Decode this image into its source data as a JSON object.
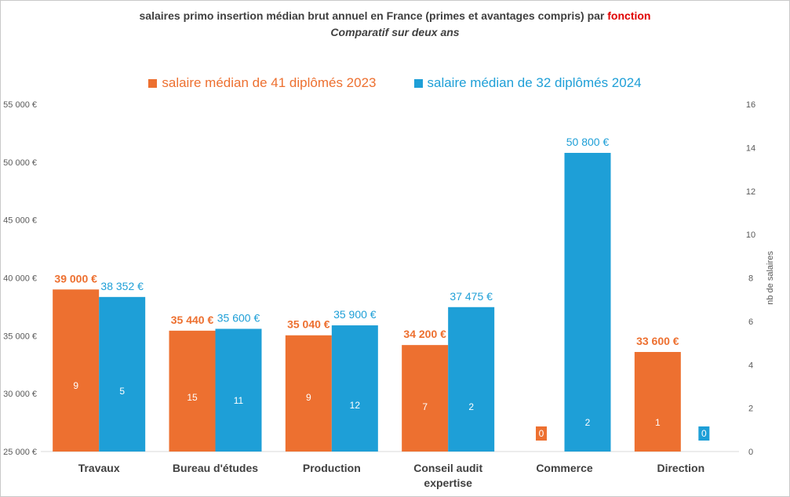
{
  "title": {
    "main": "salaires primo insertion médian brut annuel en France (primes et avantages compris) par ",
    "accent": "fonction",
    "subtitle": "Comparatif sur deux ans"
  },
  "colors": {
    "series_2023": "#ed7030",
    "series_2024": "#1e9fd7",
    "accent_title": "#e00000"
  },
  "chart_data": {
    "type": "bar",
    "title": "salaires primo insertion médian brut annuel en France (primes et avantages compris) par fonction",
    "subtitle": "Comparatif sur deux ans",
    "categories": [
      "Travaux",
      "Bureau d'études",
      "Production",
      "Conseil audit expertise",
      "Commerce",
      "Direction"
    ],
    "category_lines": [
      [
        "Travaux"
      ],
      [
        "Bureau d'études"
      ],
      [
        "Production"
      ],
      [
        "Conseil audit",
        "expertise"
      ],
      [
        "Commerce"
      ],
      [
        "Direction"
      ]
    ],
    "series": [
      {
        "name": "salaire médian de 41 diplômés 2023",
        "values": [
          39000,
          35440,
          35040,
          34200,
          null,
          33600
        ],
        "value_labels": [
          "39 000 €",
          "35 440 €",
          "35 040 €",
          "34 200 €",
          "",
          "33 600 €"
        ],
        "counts": [
          9,
          15,
          9,
          7,
          0,
          1
        ]
      },
      {
        "name": "salaire médian de 32 diplômés 2024",
        "values": [
          38352,
          35600,
          35900,
          37475,
          50800,
          null
        ],
        "value_labels": [
          "38 352 €",
          "35 600 €",
          "35 900 €",
          "37 475 €",
          "50 800 €",
          ""
        ],
        "counts": [
          5,
          11,
          12,
          2,
          2,
          0
        ]
      }
    ],
    "y_axis": {
      "ylim": [
        25000,
        55000
      ],
      "ticks": [
        25000,
        30000,
        35000,
        40000,
        45000,
        50000,
        55000
      ],
      "tick_labels": [
        "25 000 €",
        "30 000 €",
        "35 000 €",
        "40 000 €",
        "45 000 €",
        "50 000 €",
        "55 000 €"
      ]
    },
    "y2_axis": {
      "label": "nb de salaires",
      "ylim": [
        0,
        16
      ],
      "ticks": [
        0,
        2,
        4,
        6,
        8,
        10,
        12,
        14,
        16
      ],
      "tick_labels": [
        "0",
        "2",
        "4",
        "6",
        "8",
        "10",
        "12",
        "14",
        "16"
      ]
    },
    "legend_position": "top",
    "grid": false
  }
}
